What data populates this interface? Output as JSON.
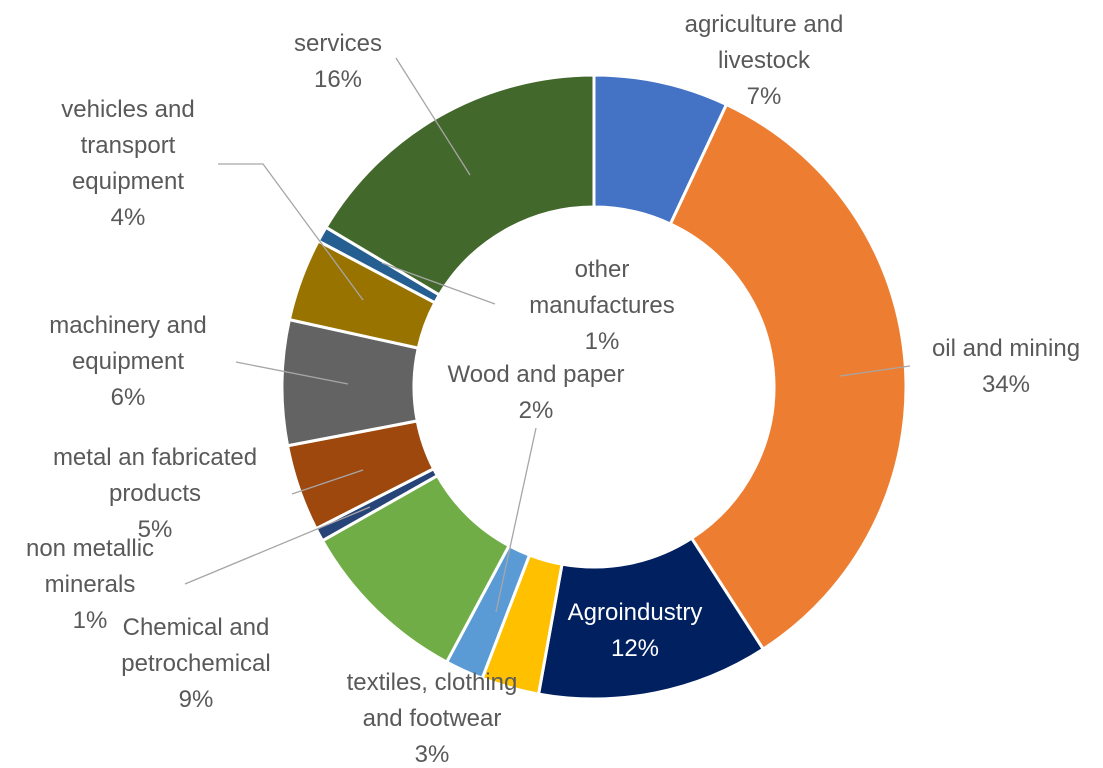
{
  "chart_data": {
    "type": "donut",
    "title": "",
    "slices": [
      {
        "lines": [
          "agriculture and",
          "livestock"
        ],
        "pct_label": "7%",
        "value": 7,
        "color": "#4472c4"
      },
      {
        "lines": [
          "oil and mining"
        ],
        "pct_label": "34%",
        "value": 34,
        "color": "#ed7d31"
      },
      {
        "lines": [
          "Agroindustry"
        ],
        "pct_label": "12%",
        "value": 12,
        "color": "#002060"
      },
      {
        "lines": [
          "textiles, clothing",
          "and footwear"
        ],
        "pct_label": "3%",
        "value": 3,
        "color": "#ffc000"
      },
      {
        "lines": [
          "Wood and paper"
        ],
        "pct_label": "2%",
        "value": 2,
        "color": "#5b9bd5"
      },
      {
        "lines": [
          "Chemical and",
          "petrochemical"
        ],
        "pct_label": "9%",
        "value": 9,
        "color": "#70ad47"
      },
      {
        "lines": [
          "non metallic",
          "minerals"
        ],
        "pct_label": "1%",
        "value": 0.7,
        "color": "#264478"
      },
      {
        "lines": [
          "metal an fabricated",
          "products"
        ],
        "pct_label": "5%",
        "value": 4.5,
        "color": "#9e480e"
      },
      {
        "lines": [
          "machinery and",
          "equipment"
        ],
        "pct_label": "6%",
        "value": 6.5,
        "color": "#636363"
      },
      {
        "lines": [
          "vehicles and",
          "transport",
          "equipment"
        ],
        "pct_label": "4%",
        "value": 4.3,
        "color": "#997300"
      },
      {
        "lines": [
          "other",
          "manufactures"
        ],
        "pct_label": "1%",
        "value": 0.8,
        "color": "#255e91"
      },
      {
        "lines": [
          "services"
        ],
        "pct_label": "16%",
        "value": 16.5,
        "color": "#43682b"
      }
    ]
  }
}
